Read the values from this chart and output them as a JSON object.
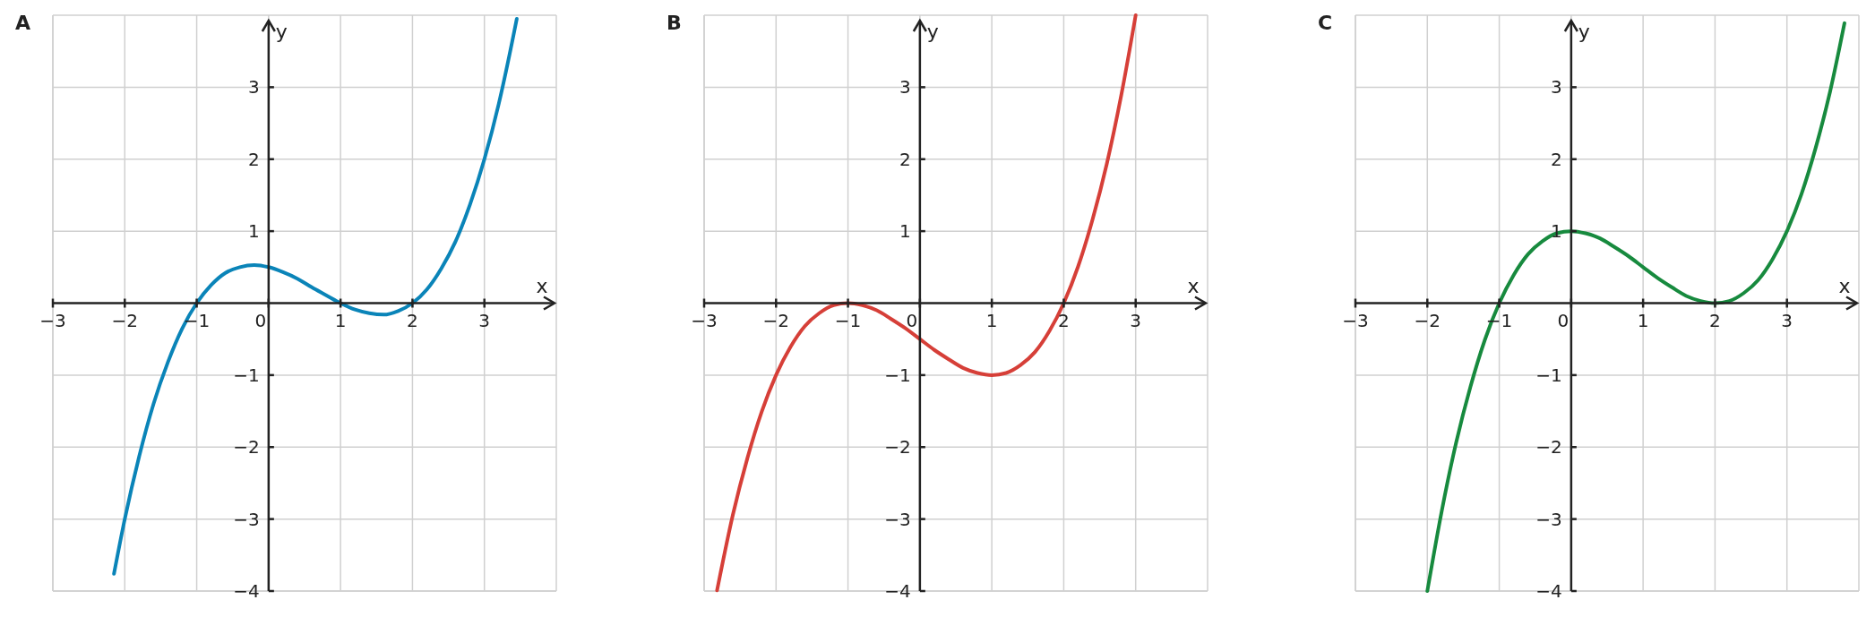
{
  "chart_data": [
    {
      "type": "line",
      "title": "A",
      "xlabel": "x",
      "ylabel": "y",
      "xlim": [
        -3,
        4
      ],
      "ylim": [
        -4,
        4
      ],
      "xticks": [
        {
          "value": -3,
          "label": "−3"
        },
        {
          "value": -2,
          "label": "−2"
        },
        {
          "value": -1,
          "label": "−1"
        },
        0,
        1,
        2,
        3
      ],
      "yticks": [
        {
          "value": -4,
          "label": "−4"
        },
        {
          "value": -3,
          "label": "−3"
        },
        {
          "value": -2,
          "label": "−2"
        },
        {
          "value": -1,
          "label": "−1"
        },
        1,
        2,
        3
      ],
      "grid": true,
      "marker": "none",
      "line_style": "solid",
      "series": [
        {
          "color": "#0a84b8",
          "x": [
            -2.15,
            -2,
            -1.8,
            -1.6,
            -1.4,
            -1.2,
            -1,
            -0.8,
            -0.6,
            -0.4,
            -0.2,
            0,
            0.2,
            0.4,
            0.6,
            0.8,
            1,
            1.2,
            1.4,
            1.6,
            1.8,
            2,
            2.2,
            2.4,
            2.6,
            2.8,
            3,
            3.2,
            3.4,
            3.45
          ],
          "values": [
            -3.76,
            -3,
            -2.13,
            -1.4,
            -0.82,
            -0.35,
            0,
            0.25,
            0.42,
            0.5,
            0.53,
            0.5,
            0.43,
            0.34,
            0.22,
            0.11,
            0,
            -0.09,
            -0.14,
            -0.16,
            -0.11,
            0,
            0.19,
            0.48,
            0.86,
            1.37,
            2,
            2.77,
            3.7,
            3.95
          ]
        }
      ]
    },
    {
      "type": "line",
      "title": "B",
      "xlabel": "x",
      "ylabel": "y",
      "xlim": [
        -3,
        4
      ],
      "ylim": [
        -4,
        4
      ],
      "xticks": [
        {
          "value": -3,
          "label": "−3"
        },
        {
          "value": -2,
          "label": "−2"
        },
        {
          "value": -1,
          "label": "−1"
        },
        0,
        1,
        2,
        3
      ],
      "yticks": [
        {
          "value": -4,
          "label": "−4"
        },
        {
          "value": -3,
          "label": "−3"
        },
        {
          "value": -2,
          "label": "−2"
        },
        {
          "value": -1,
          "label": "−1"
        },
        1,
        2,
        3
      ],
      "grid": true,
      "marker": "none",
      "line_style": "solid",
      "series": [
        {
          "color": "#d63f38",
          "x": [
            -2.82,
            -2.8,
            -2.6,
            -2.4,
            -2.2,
            -2,
            -1.8,
            -1.6,
            -1.4,
            -1.2,
            -1,
            -0.8,
            -0.6,
            -0.4,
            -0.2,
            0,
            0.2,
            0.4,
            0.6,
            0.8,
            1,
            1.2,
            1.4,
            1.6,
            1.8,
            2,
            2.2,
            2.4,
            2.6,
            2.8,
            3
          ],
          "values": [
            -3.99,
            -3.89,
            -2.94,
            -2.16,
            -1.51,
            -1,
            -0.61,
            -0.32,
            -0.14,
            -0.03,
            0,
            -0.03,
            -0.1,
            -0.22,
            -0.35,
            -0.5,
            -0.65,
            -0.78,
            -0.9,
            -0.97,
            -1,
            -0.97,
            -0.86,
            -0.68,
            -0.39,
            0,
            0.51,
            1.16,
            1.94,
            2.89,
            4
          ]
        }
      ]
    },
    {
      "type": "line",
      "title": "C",
      "xlabel": "x",
      "ylabel": "y",
      "xlim": [
        -3,
        4
      ],
      "ylim": [
        -4,
        4
      ],
      "xticks": [
        {
          "value": -3,
          "label": "−3"
        },
        {
          "value": -2,
          "label": "−2"
        },
        {
          "value": -1,
          "label": "−1"
        },
        0,
        1,
        2,
        3
      ],
      "yticks": [
        {
          "value": -4,
          "label": "−4"
        },
        {
          "value": -3,
          "label": "−3"
        },
        {
          "value": -2,
          "label": "−2"
        },
        {
          "value": -1,
          "label": "−1"
        },
        1,
        2,
        3
      ],
      "grid": true,
      "marker": "none",
      "line_style": "solid",
      "series": [
        {
          "color": "#178a3e",
          "x": [
            -2,
            -1.8,
            -1.6,
            -1.4,
            -1.2,
            -1,
            -0.8,
            -0.6,
            -0.4,
            -0.2,
            0,
            0.2,
            0.4,
            0.6,
            0.8,
            1,
            1.2,
            1.4,
            1.6,
            1.8,
            2,
            2.2,
            2.4,
            2.6,
            2.8,
            3,
            3.2,
            3.4,
            3.6,
            3.8
          ],
          "values": [
            -4,
            -2.89,
            -1.94,
            -1.16,
            -0.51,
            0,
            0.39,
            0.68,
            0.86,
            0.97,
            1,
            0.97,
            0.9,
            0.78,
            0.65,
            0.5,
            0.35,
            0.22,
            0.1,
            0.03,
            0,
            0.03,
            0.14,
            0.32,
            0.61,
            1,
            1.51,
            2.16,
            2.94,
            3.89
          ]
        }
      ]
    }
  ]
}
